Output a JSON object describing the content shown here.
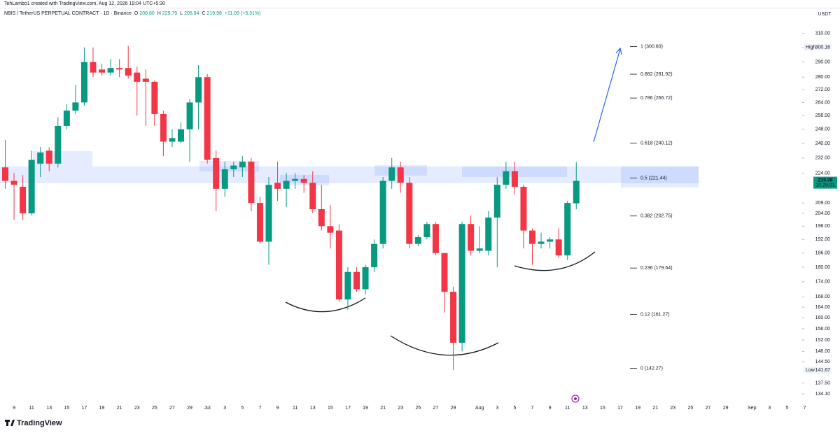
{
  "header": {
    "credit": "TehLambo1 created with TradingView.com, Aug 12, 2026 19:04 UTC+5:30",
    "symbol": "NBIS / TetherUS PERPETUAL CONTRACT · 1D · Binance",
    "ohlc": [
      {
        "key": "O",
        "value": "208.80"
      },
      {
        "key": "H",
        "value": "229.79"
      },
      {
        "key": "L",
        "value": "205.94"
      },
      {
        "key": "C",
        "value": "219.98"
      }
    ],
    "change": "+11.09 (+5.31%)",
    "currency": "USDT"
  },
  "footer": {
    "logo": "TradingView"
  },
  "chart_data": {
    "type": "candlestick",
    "log_scale": true,
    "grid": false,
    "up_color": "#089981",
    "down_color": "#f23645",
    "ylim": [
      131.5,
      318
    ],
    "yticks": [
      {
        "value": 310,
        "label": "310.00"
      },
      {
        "value": 300,
        "label": "300.00"
      },
      {
        "value": 290,
        "label": "290.00"
      },
      {
        "value": 280,
        "label": "280.00"
      },
      {
        "value": 272,
        "label": "272.00"
      },
      {
        "value": 264,
        "label": "264.00"
      },
      {
        "value": 256,
        "label": "256.00"
      },
      {
        "value": 248,
        "label": "248.00"
      },
      {
        "value": 240,
        "label": "240.00"
      },
      {
        "value": 232,
        "label": "232.00"
      },
      {
        "value": 224,
        "label": "224.00"
      },
      {
        "value": 209,
        "label": "209.00"
      },
      {
        "value": 204,
        "label": "204.00"
      },
      {
        "value": 198,
        "label": "198.00"
      },
      {
        "value": 192,
        "label": "192.00"
      },
      {
        "value": 186,
        "label": "186.00"
      },
      {
        "value": 180,
        "label": "180.00"
      },
      {
        "value": 174,
        "label": "174.00"
      },
      {
        "value": 168,
        "label": "168.00"
      },
      {
        "value": 164,
        "label": "164.00"
      },
      {
        "value": 160,
        "label": "160.00"
      },
      {
        "value": 156,
        "label": "156.00"
      },
      {
        "value": 152,
        "label": "152.00"
      },
      {
        "value": 148,
        "label": "148.00"
      },
      {
        "value": 144.5,
        "label": "144.50"
      },
      {
        "value": 137.5,
        "label": "137.50"
      },
      {
        "value": 134.1,
        "label": "134.10"
      }
    ],
    "categories": [
      null,
      "9",
      null,
      "11",
      null,
      "13",
      null,
      "15",
      null,
      "17",
      null,
      "19",
      null,
      "21",
      null,
      "23",
      null,
      "25",
      null,
      "27",
      null,
      "29",
      null,
      "Jul",
      null,
      "3",
      null,
      "5",
      null,
      "7",
      null,
      "9",
      null,
      "11",
      null,
      "13",
      null,
      "15",
      null,
      "17",
      null,
      "19",
      null,
      "21",
      null,
      "23",
      null,
      "25",
      null,
      "27",
      null,
      "29",
      null,
      null,
      "Aug",
      null,
      "3",
      null,
      "5",
      null,
      "7",
      null,
      "9",
      null,
      "11",
      null,
      "13",
      null,
      "15",
      null,
      "17",
      null,
      "19",
      null,
      "21",
      null,
      "23",
      null,
      "25",
      null,
      "27",
      null,
      "29",
      null,
      null,
      "Sep",
      null,
      "3",
      null,
      "5",
      null,
      "7"
    ],
    "open": [
      227,
      220,
      217,
      204,
      229,
      236,
      229,
      250,
      259,
      264,
      290,
      285,
      283,
      286,
      286,
      283,
      279,
      277,
      257,
      241,
      241,
      248,
      264,
      280,
      232,
      216,
      226,
      227,
      230,
      209,
      191,
      219,
      216,
      220,
      221,
      219,
      206,
      198,
      196,
      167,
      178,
      171,
      180,
      190,
      220,
      227,
      219,
      190,
      193,
      199,
      186,
      170,
      151,
      199,
      187,
      187,
      202,
      218,
      225,
      217,
      196,
      190,
      191,
      192,
      185,
      208.8,
      null,
      null,
      null,
      null,
      null,
      null,
      null,
      null,
      null,
      null,
      null,
      null,
      null,
      null,
      null,
      null,
      null,
      null,
      null,
      null,
      null,
      null,
      null,
      null,
      null,
      null
    ],
    "high": [
      242,
      224,
      223,
      236,
      238,
      238,
      255,
      263,
      275,
      300,
      300,
      289,
      292,
      292,
      301,
      287,
      285,
      278,
      259,
      248,
      252,
      266,
      288,
      282,
      236,
      230,
      230,
      233,
      232,
      212,
      222,
      230,
      224,
      224,
      223,
      225,
      218,
      208,
      199,
      180,
      180,
      181,
      192,
      222,
      232,
      230,
      222,
      194,
      200,
      200,
      186,
      172,
      200,
      203,
      198,
      205,
      222,
      230,
      230,
      218,
      197,
      195,
      193,
      197,
      210,
      229.79,
      null,
      null,
      null,
      null,
      null,
      null,
      null,
      null,
      null,
      null,
      null,
      null,
      null,
      null,
      null,
      null,
      null,
      null,
      null,
      null,
      null,
      null,
      null,
      null,
      null,
      null
    ],
    "low": [
      216,
      201,
      201,
      203,
      222,
      225,
      227,
      248,
      257,
      262,
      280,
      281,
      281,
      280,
      279,
      256,
      250,
      250,
      233,
      238,
      240,
      230,
      248,
      229,
      205,
      212,
      222,
      222,
      205,
      190,
      181,
      210,
      207,
      216,
      214,
      204,
      196,
      188,
      166,
      163,
      170,
      169,
      178,
      188,
      216,
      214,
      188,
      189,
      192,
      185,
      162,
      141.67,
      148,
      185,
      186,
      185,
      180,
      216,
      213,
      188,
      181,
      188,
      188,
      184,
      183,
      205.94,
      null,
      null,
      null,
      null,
      null,
      null,
      null,
      null,
      null,
      null,
      null,
      null,
      null,
      null,
      null,
      null,
      null,
      null,
      null,
      null,
      null,
      null,
      null,
      null,
      null,
      null
    ],
    "close": [
      220,
      218,
      204,
      231,
      235,
      229,
      250,
      259,
      264,
      290,
      283,
      283,
      286,
      285,
      281,
      277,
      277,
      257,
      241,
      243,
      248,
      264,
      280,
      231,
      216,
      226,
      228,
      230,
      209,
      191,
      218,
      216,
      220,
      221,
      219,
      206,
      198,
      195,
      167,
      178,
      171,
      180,
      190,
      220,
      227,
      219,
      190,
      193,
      199,
      186,
      170,
      151,
      199,
      187,
      188,
      202,
      218,
      225,
      217,
      196,
      190,
      191,
      192,
      185,
      209,
      219.98,
      null,
      null,
      null,
      null,
      null,
      null,
      null,
      null,
      null,
      null,
      null,
      null,
      null,
      null,
      null,
      null,
      null,
      null,
      null,
      null,
      null,
      null,
      null,
      null,
      null,
      null
    ],
    "fib_levels": [
      {
        "value": 300.6,
        "label": "1 (300.60)"
      },
      {
        "value": 281.92,
        "label": "0.882 (281.92)"
      },
      {
        "value": 266.72,
        "label": "0.786 (266.72)"
      },
      {
        "value": 240.12,
        "label": "0.618 (240.12)"
      },
      {
        "value": 221.44,
        "label": "0.5 (221.44)"
      },
      {
        "value": 202.75,
        "label": "0.382 (202.75)"
      },
      {
        "value": 179.64,
        "label": "0.236 (179.64)"
      },
      {
        "value": 161.27,
        "label": "0.12 (161.27)"
      },
      {
        "value": 142.27,
        "label": "0 (142.27)"
      }
    ],
    "high_marker": {
      "label": "High",
      "value": 300.16
    },
    "low_marker": {
      "label": "Low",
      "value": 141.67
    },
    "countdown": "10:25:01"
  }
}
